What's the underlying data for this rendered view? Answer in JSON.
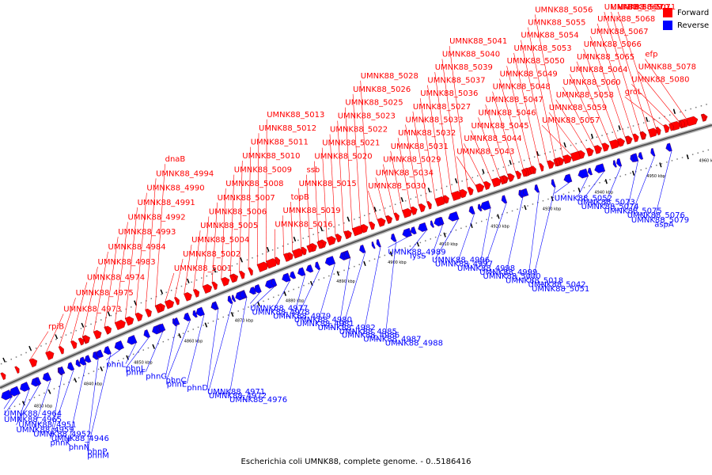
{
  "caption": "Escherichia coli UMNK88, complete genome. - 0..5186416",
  "legend": [
    {
      "label": "Forward",
      "color": "#ff0000"
    },
    {
      "label": "Reverse",
      "color": "#0000ff"
    }
  ],
  "colors": {
    "forward": "#ff0000",
    "reverse": "#0000ff",
    "backbone": "#555555"
  },
  "ticks": [
    "4830 kbp",
    "4840 kbp",
    "4850 kbp",
    "4860 kbp",
    "4870 kbp",
    "4880 kbp",
    "4890 kbp",
    "4900 kbp",
    "4910 kbp",
    "4920 kbp",
    "4930 kbp",
    "4940 kbp",
    "4950 kbp",
    "4960 kbp"
  ],
  "forward_labels": [
    "rpiB",
    "UMNK88_4973",
    "UMNK88_4975",
    "UMNK88_4974",
    "UMNK88_4983",
    "UMNK88_4984",
    "UMNK88_4993",
    "UMNK88_4992",
    "UMNK88_4991",
    "UMNK88_4990",
    "UMNK88_4994",
    "dnaB",
    "UMNK88_5001",
    "UMNK88_5002",
    "UMNK88_5004",
    "UMNK88_5005",
    "UMNK88_5006",
    "UMNK88_5007",
    "UMNK88_5008",
    "UMNK88_5009",
    "UMNK88_5010",
    "UMNK88_5011",
    "UMNK88_5012",
    "UMNK88_5013",
    "UMNK88_5016",
    "UMNK88_5019",
    "topB",
    "UMNK88_5015",
    "ssb",
    "UMNK88_5020",
    "UMNK88_5021",
    "UMNK88_5022",
    "UMNK88_5023",
    "UMNK88_5025",
    "UMNK88_5026",
    "UMNK88_5028",
    "UMNK88_5030",
    "UMNK88_5034",
    "UMNK88_5029",
    "UMNK88_5031",
    "UMNK88_5032",
    "UMNK88_5033",
    "UMNK88_5027",
    "UMNK88_5036",
    "UMNK88_5037",
    "UMNK88_5039",
    "UMNK88_5040",
    "UMNK88_5041",
    "UMNK88_5043",
    "UMNK88_5044",
    "UMNK88_5045",
    "UMNK88_5046",
    "UMNK88_5047",
    "UMNK88_5048",
    "UMNK88_5049",
    "UMNK88_5050",
    "UMNK88_5053",
    "UMNK88_5054",
    "UMNK88_5055",
    "UMNK88_5056",
    "UMNK88_5057",
    "UMNK88_5059",
    "UMNK88_5058",
    "UMNK88_5060",
    "UMNK88_5064",
    "UMNK88_5065",
    "UMNK88_5066",
    "UMNK88_5067",
    "UMNK88_5068",
    "UMNK88_5069",
    "UMNK88_5070",
    "UMNK88_5071",
    "groL",
    "UMNK88_5080",
    "UMNK88_5078",
    "efp"
  ],
  "reverse_labels": [
    "UMNK88_4964",
    "UMNK88_4965",
    "UMNK88_4951",
    "UMNK88_4959",
    "UMNK88_4952",
    "UMNK88_4946",
    "phnK",
    "phnN",
    "phnP",
    "phnM",
    "phnL",
    "phnJ",
    "phnF",
    "phnG",
    "phnC",
    "phnE",
    "phnD",
    "UMNK88_4971",
    "UMNK88_4972",
    "UMNK88_4976",
    "UMNK88_4977",
    "UMNK88_4978",
    "UMNK88_4979",
    "UMNK88_4980",
    "UMNK88_4981",
    "UMNK88_4982",
    "UMNK88_4985",
    "UMNK88_4986",
    "UMNK88_4987",
    "UMNK88_4988",
    "UMNK88_4989",
    "lysS",
    "UMNK88_4996",
    "UMNK88_4997",
    "UMNK88_4998",
    "UMNK88_4999",
    "UMNK88_5000",
    "UMNK88_5018",
    "UMNK88_5042",
    "UMNK88_5051",
    "UMNK88_5052",
    "UMNK88_5073",
    "UMNK88_5074",
    "UMNK88_5075",
    "UMNK88_5076",
    "UMNK88_5079",
    "aspA"
  ]
}
